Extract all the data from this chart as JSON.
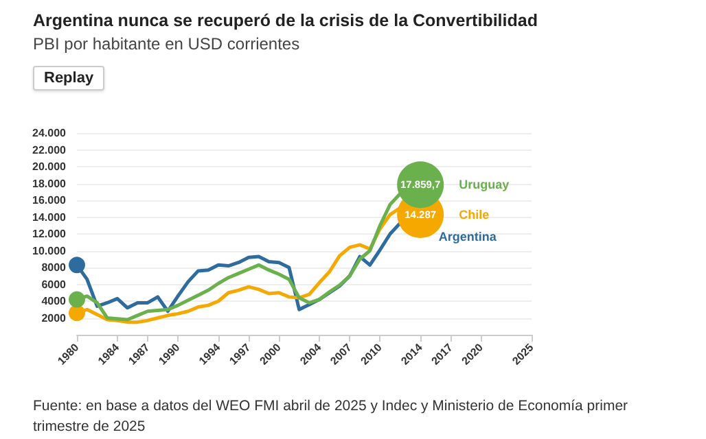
{
  "chart_data": {
    "type": "line",
    "title": "Argentina nunca se recuperó de la crisis de la Convertibilidad",
    "subtitle": "PBI por habitante en USD corrientes",
    "annotations": [
      "Replay",
      "Fuente: en base a datos del WEO FMI abril de 2025 y Indec y Ministerio de Economía primer trimestre de 2025"
    ],
    "x": [
      1980,
      1981,
      1982,
      1983,
      1984,
      1985,
      1986,
      1987,
      1988,
      1989,
      1990,
      1991,
      1992,
      1993,
      1994,
      1995,
      1996,
      1997,
      1998,
      1999,
      2000,
      2001,
      2002,
      2003,
      2004,
      2005,
      2006,
      2007,
      2008,
      2009,
      2010,
      2011,
      2012,
      2014
    ],
    "series": [
      {
        "name": "Uruguay",
        "color": "#6ab04c",
        "values": [
          4200,
          4600,
          3800,
          2000,
          1900,
          1800,
          2300,
          2800,
          2900,
          3000,
          3500,
          4100,
          4700,
          5300,
          6100,
          6800,
          7300,
          7800,
          8300,
          7700,
          7200,
          6600,
          4400,
          3800,
          4200,
          5100,
          5900,
          7000,
          9000,
          10000,
          13000,
          15500,
          16800,
          17859.7
        ],
        "value_labels": [
          null,
          null,
          null,
          null,
          null,
          null,
          null,
          null,
          null,
          null,
          null,
          null,
          null,
          null,
          null,
          null,
          null,
          null,
          null,
          null,
          null,
          null,
          null,
          null,
          null,
          null,
          null,
          null,
          null,
          null,
          null,
          null,
          null,
          "17.859,7"
        ]
      },
      {
        "name": "Chile",
        "color": "#f5a800",
        "values": [
          2600,
          3000,
          2400,
          1800,
          1700,
          1500,
          1500,
          1700,
          2000,
          2300,
          2500,
          2800,
          3300,
          3500,
          4000,
          5000,
          5300,
          5700,
          5400,
          4900,
          5000,
          4500,
          4400,
          4800,
          6200,
          7500,
          9400,
          10400,
          10700,
          10200,
          12600,
          14300,
          15100,
          14287
        ],
        "value_labels": [
          null,
          null,
          null,
          null,
          null,
          null,
          null,
          null,
          null,
          null,
          null,
          null,
          null,
          null,
          null,
          null,
          null,
          null,
          null,
          null,
          null,
          null,
          null,
          null,
          null,
          null,
          null,
          null,
          null,
          null,
          null,
          null,
          null,
          "14.287"
        ]
      },
      {
        "name": "Argentina",
        "color": "#2e6b9e",
        "values": [
          8300,
          6600,
          3400,
          3800,
          4300,
          3200,
          3800,
          3800,
          4500,
          2800,
          4600,
          6300,
          7600,
          7700,
          8300,
          8200,
          8600,
          9200,
          9300,
          8700,
          8600,
          8000,
          3000,
          3600,
          4200,
          5000,
          5800,
          7000,
          9300,
          8300,
          10100,
          12000,
          13300,
          null
        ]
      }
    ],
    "xlim": [
      1980,
      2025
    ],
    "xticks": [
      1980,
      1984,
      1987,
      1990,
      1994,
      1997,
      2000,
      2004,
      2007,
      2010,
      2014,
      2017,
      2020,
      2025
    ],
    "ylim": [
      0,
      24000
    ],
    "yticks": [
      2000,
      4000,
      6000,
      8000,
      {
        "value": 10000,
        "label": "10.000"
      },
      {
        "value": 12000,
        "label": "12.000"
      },
      {
        "value": 14000,
        "label": "14.000"
      },
      {
        "value": 16000,
        "label": "16.000"
      },
      {
        "value": 18000,
        "label": "18.000"
      },
      {
        "value": 20000,
        "label": "20.000"
      },
      {
        "value": 22000,
        "label": "22.000"
      },
      {
        "value": 24000,
        "label": "24.000"
      }
    ],
    "grid": "y",
    "legend": false,
    "line_style": "solid"
  }
}
